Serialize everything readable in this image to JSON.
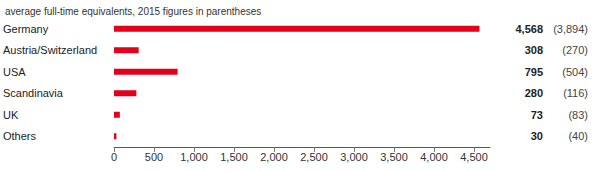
{
  "chart_data": {
    "type": "bar",
    "title": "average full-time equivalents, 2015 figures in parentheses",
    "orientation": "horizontal",
    "categories": [
      "Germany",
      "Austria/Switzerland",
      "USA",
      "Scandinavia",
      "UK",
      "Others"
    ],
    "values": [
      4568,
      308,
      795,
      280,
      73,
      30
    ],
    "value_labels": [
      "4,568",
      "308",
      "795",
      "280",
      "73",
      "30"
    ],
    "values_2015": [
      3894,
      270,
      504,
      116,
      83,
      40
    ],
    "values_2015_labels": [
      "(3,894)",
      "(270)",
      "(504)",
      "(116)",
      "(83)",
      "(40)"
    ],
    "color": "#e2001a",
    "xlim": [
      0,
      4700
    ],
    "xticks": [
      0,
      500,
      {
        "value": 1000,
        "label": "1,000"
      },
      {
        "value": 1500,
        "label": "1,500"
      },
      {
        "value": 2000,
        "label": "2,000"
      },
      {
        "value": 2500,
        "label": "2,500"
      },
      {
        "value": 3000,
        "label": "3,000"
      },
      {
        "value": 3500,
        "label": "3,500"
      },
      {
        "value": 4000,
        "label": "4,000"
      },
      {
        "value": 4500,
        "label": "4,500"
      }
    ],
    "grid": false,
    "data_labels": true
  }
}
